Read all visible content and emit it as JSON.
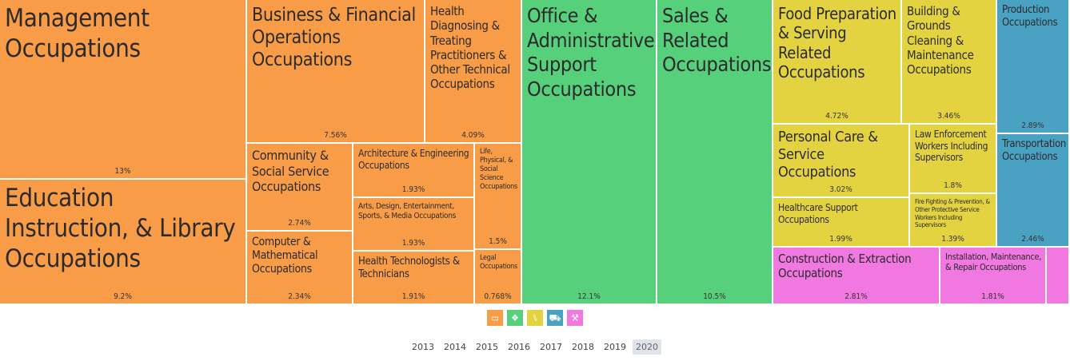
{
  "chart_data": {
    "type": "treemap",
    "tiles": [
      {
        "id": "management",
        "label": "Management Occupations",
        "share_label": "13%",
        "value": 13,
        "group": "orange"
      },
      {
        "id": "education",
        "label": "Education Instruction, & Library Occupations",
        "share_label": "9.2%",
        "value": 9.2,
        "group": "orange"
      },
      {
        "id": "business",
        "label": "Business & Financial Operations Occupations",
        "share_label": "7.56%",
        "value": 7.56,
        "group": "orange"
      },
      {
        "id": "health-diagnosing",
        "label": "Health Diagnosing & Treating Practitioners & Other Technical Occupations",
        "share_label": "4.09%",
        "value": 4.09,
        "group": "orange"
      },
      {
        "id": "community",
        "label": "Community & Social Service Occupations",
        "share_label": "2.74%",
        "value": 2.74,
        "group": "orange"
      },
      {
        "id": "computer",
        "label": "Computer & Mathematical Occupations",
        "share_label": "2.34%",
        "value": 2.34,
        "group": "orange"
      },
      {
        "id": "architecture",
        "label": "Architecture & Engineering Occupations",
        "share_label": "1.93%",
        "value": 1.93,
        "group": "orange"
      },
      {
        "id": "arts",
        "label": "Arts, Design, Entertainment, Sports, & Media Occupations",
        "share_label": "1.93%",
        "value": 1.93,
        "group": "orange"
      },
      {
        "id": "health-technologists",
        "label": "Health Technologists & Technicians",
        "share_label": "1.91%",
        "value": 1.91,
        "group": "orange"
      },
      {
        "id": "life-science",
        "label": "Life, Physical, & Social Science Occupations",
        "share_label": "1.5%",
        "value": 1.5,
        "group": "orange"
      },
      {
        "id": "legal",
        "label": "Legal Occupations",
        "share_label": "0.768%",
        "value": 0.768,
        "group": "orange"
      },
      {
        "id": "office",
        "label": "Office & Administrative Support Occupations",
        "share_label": "12.1%",
        "value": 12.1,
        "group": "green"
      },
      {
        "id": "sales",
        "label": "Sales & Related Occupations",
        "share_label": "10.5%",
        "value": 10.5,
        "group": "green"
      },
      {
        "id": "food",
        "label": "Food Preparation & Serving Related Occupations",
        "share_label": "4.72%",
        "value": 4.72,
        "group": "yellow"
      },
      {
        "id": "building",
        "label": "Building & Grounds Cleaning & Maintenance Occupations",
        "share_label": "3.46%",
        "value": 3.46,
        "group": "yellow"
      },
      {
        "id": "personal-care",
        "label": "Personal Care & Service Occupations",
        "share_label": "3.02%",
        "value": 3.02,
        "group": "yellow"
      },
      {
        "id": "law-enforcement",
        "label": "Law Enforcement Workers Including Supervisors",
        "share_label": "1.8%",
        "value": 1.8,
        "group": "yellow"
      },
      {
        "id": "healthcare-support",
        "label": "Healthcare Support Occupations",
        "share_label": "1.99%",
        "value": 1.99,
        "group": "yellow"
      },
      {
        "id": "fire-fighting",
        "label": "Fire Fighting & Prevention, & Other Protective Service Workers Including Supervisors",
        "share_label": "1.39%",
        "value": 1.39,
        "group": "yellow"
      },
      {
        "id": "production",
        "label": "Production Occupations",
        "share_label": "2.89%",
        "value": 2.89,
        "group": "blue"
      },
      {
        "id": "transportation",
        "label": "Transportation Occupations",
        "share_label": "2.46%",
        "value": 2.46,
        "group": "blue"
      },
      {
        "id": "construction",
        "label": "Construction & Extraction Occupations",
        "share_label": "2.81%",
        "value": 2.81,
        "group": "pink"
      },
      {
        "id": "installation",
        "label": "Installation, Maintenance, & Repair Occupations",
        "share_label": "1.81%",
        "value": 1.81,
        "group": "pink"
      },
      {
        "id": "pink-unlabeled",
        "label": "",
        "share_label": "",
        "value": 0.3,
        "group": "pink"
      }
    ],
    "group_colors": {
      "orange": "#f89c47",
      "green": "#57d07c",
      "yellow": "#e4d341",
      "blue": "#4aa2c2",
      "pink": "#f078e0"
    }
  },
  "group_icons": [
    {
      "group": "orange",
      "icon": "computer-icon",
      "glyph": "▭"
    },
    {
      "group": "green",
      "icon": "box-icon",
      "glyph": "❖"
    },
    {
      "group": "yellow",
      "icon": "utensils-icon",
      "glyph": "⑊"
    },
    {
      "group": "blue",
      "icon": "truck-icon",
      "glyph": "⛟"
    },
    {
      "group": "pink",
      "icon": "wrench-icon",
      "glyph": "⚒"
    }
  ],
  "years": {
    "options": [
      "2013",
      "2014",
      "2015",
      "2016",
      "2017",
      "2018",
      "2019",
      "2020"
    ],
    "selected": "2020"
  }
}
